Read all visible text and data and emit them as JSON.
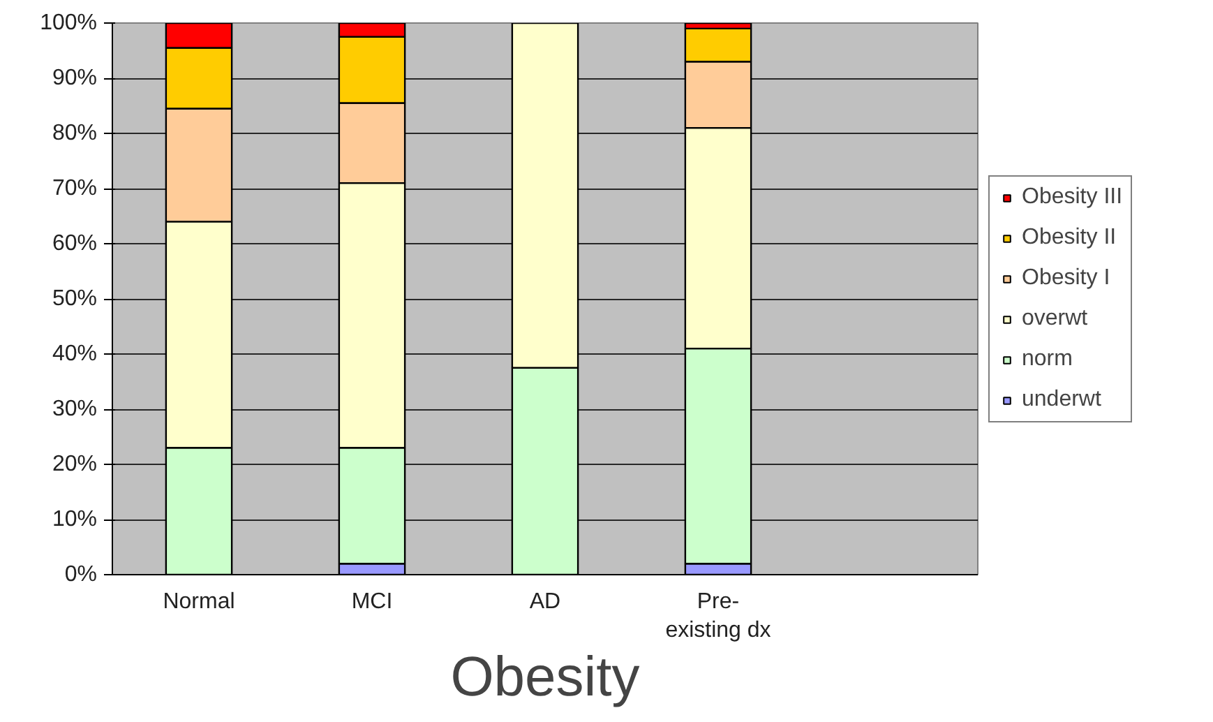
{
  "chart_data": {
    "type": "bar",
    "stacked": true,
    "xlabel": "Obesity",
    "categories": [
      "Normal",
      "MCI",
      "AD",
      "Pre-\nexisting dx",
      null
    ],
    "series": [
      {
        "name": "underwt",
        "color": "#9999ff",
        "values": [
          0,
          2,
          0,
          2,
          null
        ]
      },
      {
        "name": "norm",
        "color": "#ccffcc",
        "values": [
          23,
          21,
          37.5,
          39,
          null
        ]
      },
      {
        "name": "overwt",
        "color": "#ffffcc",
        "values": [
          41,
          48,
          62.5,
          40,
          null
        ]
      },
      {
        "name": "Obesity I",
        "color": "#ffcc99",
        "values": [
          20.5,
          14.5,
          0,
          12,
          null
        ]
      },
      {
        "name": "Obesity II",
        "color": "#ffcc00",
        "values": [
          11,
          12,
          0,
          6,
          null
        ]
      },
      {
        "name": "Obesity III",
        "color": "#ff0000",
        "values": [
          4.5,
          2.5,
          0,
          1,
          null
        ]
      }
    ],
    "ylim": [
      0,
      100
    ],
    "yticks": [
      {
        "value": 0,
        "label": "0%"
      },
      {
        "value": 10,
        "label": "10%"
      },
      {
        "value": 20,
        "label": "20%"
      },
      {
        "value": 30,
        "label": "30%"
      },
      {
        "value": 40,
        "label": "40%"
      },
      {
        "value": 50,
        "label": "50%"
      },
      {
        "value": 60,
        "label": "60%"
      },
      {
        "value": 70,
        "label": "70%"
      },
      {
        "value": 80,
        "label": "80%"
      },
      {
        "value": 90,
        "label": "90%"
      },
      {
        "value": 100,
        "label": "100%"
      }
    ],
    "grid": "y",
    "legend": "right"
  }
}
